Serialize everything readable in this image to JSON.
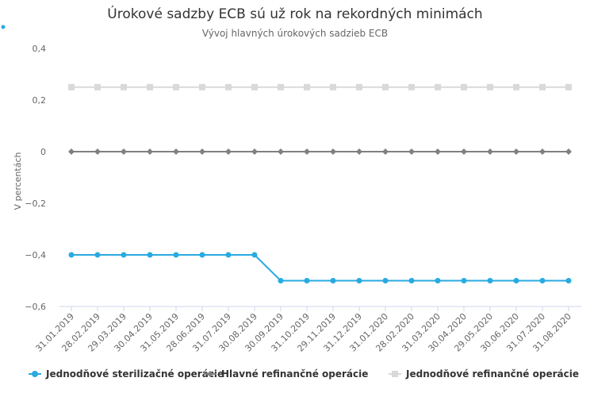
{
  "chart_data": {
    "type": "line",
    "title": "Úrokové sadzby ECB sú už rok na rekordných minimách",
    "subtitle": "Vývoj hlavných úrokových sadzieb ECB",
    "ylabel": "V percentách",
    "xlabel": "",
    "ylim": [
      -0.6,
      0.4
    ],
    "yticks": [
      0.4,
      0.2,
      0,
      -0.2,
      -0.4,
      -0.6
    ],
    "ytick_labels": [
      "0,4",
      "0,2",
      "0",
      "−0,2",
      "−0,4",
      "−0,6"
    ],
    "grid": false,
    "legend_position": "bottom",
    "categories": [
      "31.01.2019",
      "28.02.2019",
      "29.03.2019",
      "30.04.2019",
      "31.05.2019",
      "28.06.2019",
      "31.07.2019",
      "30.08.2019",
      "30.09.2019",
      "31.10.2019",
      "29.11.2019",
      "31.12.2019",
      "31.01.2020",
      "28.02.2020",
      "31.03.2020",
      "30.04.2020",
      "29.05.2020",
      "30.06.2020",
      "31.07.2020",
      "31.08.2020"
    ],
    "series": [
      {
        "name": "Jednodňové sterilizačné operácie",
        "color": "#29aae1",
        "marker": "circle",
        "values": [
          -0.4,
          -0.4,
          -0.4,
          -0.4,
          -0.4,
          -0.4,
          -0.4,
          -0.4,
          -0.5,
          -0.5,
          -0.5,
          -0.5,
          -0.5,
          -0.5,
          -0.5,
          -0.5,
          -0.5,
          -0.5,
          -0.5,
          -0.5
        ]
      },
      {
        "name": "Hlavné refinančné operácie",
        "color": "#808080",
        "marker": "diamond",
        "values": [
          0,
          0,
          0,
          0,
          0,
          0,
          0,
          0,
          0,
          0,
          0,
          0,
          0,
          0,
          0,
          0,
          0,
          0,
          0,
          0
        ]
      },
      {
        "name": "Jednodňové refinančné operácie",
        "color": "#d9d9d9",
        "marker": "square",
        "values": [
          0.25,
          0.25,
          0.25,
          0.25,
          0.25,
          0.25,
          0.25,
          0.25,
          0.25,
          0.25,
          0.25,
          0.25,
          0.25,
          0.25,
          0.25,
          0.25,
          0.25,
          0.25,
          0.25,
          0.25
        ]
      }
    ]
  }
}
